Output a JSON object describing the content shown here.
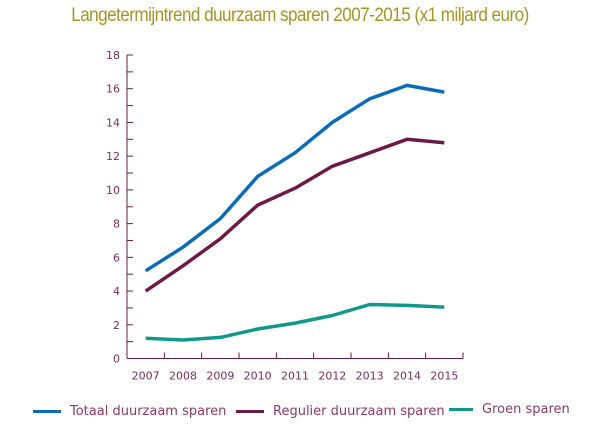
{
  "chart_data": {
    "type": "line",
    "title": "Langetermijntrend duurzaam sparen 2007-2015 (x1 miljard euro)",
    "xlabel": "",
    "ylabel": "",
    "categories": [
      "2007",
      "2008",
      "2009",
      "2010",
      "2011",
      "2012",
      "2013",
      "2014",
      "2015"
    ],
    "ylim": [
      0,
      18
    ],
    "yticks": [
      "0",
      "2",
      "4",
      "6",
      "8",
      "10",
      "12",
      "14",
      "16",
      "18"
    ],
    "grid": false,
    "legend_position": "bottom",
    "series": [
      {
        "name": "Totaal duurzaam sparen",
        "color": "#0b6cb5",
        "values": [
          5.2,
          6.6,
          8.3,
          10.8,
          12.2,
          14.0,
          15.4,
          16.2,
          15.8
        ]
      },
      {
        "name": "Regulier duurzaam sparen",
        "color": "#6d1a48",
        "values": [
          4.0,
          5.5,
          7.1,
          9.1,
          10.1,
          11.4,
          12.2,
          13.0,
          12.8
        ]
      },
      {
        "name": "Groen sparen",
        "color": "#10998a",
        "values": [
          1.2,
          1.1,
          1.25,
          1.75,
          2.1,
          2.55,
          3.2,
          3.15,
          3.05
        ]
      }
    ]
  }
}
